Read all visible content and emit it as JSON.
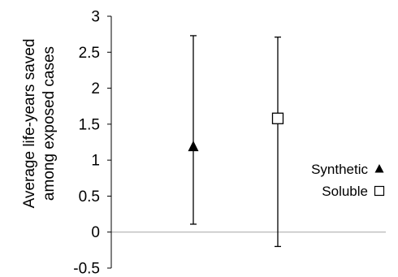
{
  "chart_data": {
    "type": "scatter",
    "ylabel_lines": [
      "Average life-years saved",
      "among exposed cases"
    ],
    "ylim": [
      -0.5,
      3
    ],
    "yticks": [
      -0.5,
      0,
      0.5,
      1,
      1.5,
      2,
      2.5,
      3
    ],
    "ytick_labels": [
      "-0.5",
      "0",
      "0.5",
      "1",
      "1.5",
      "2",
      "2.5",
      "3"
    ],
    "grid": false,
    "legend_position": "right",
    "series": [
      {
        "name": "Synthetic",
        "marker": "filled-triangle",
        "y": 1.19,
        "error_low": 0.11,
        "error_high": 2.73
      },
      {
        "name": "Soluble",
        "marker": "open-square",
        "y": 1.58,
        "error_low": -0.2,
        "error_high": 2.71
      }
    ],
    "colors": {
      "axis": "#000000",
      "zero_line": "#a6a6a6",
      "marker": "#000000"
    }
  }
}
